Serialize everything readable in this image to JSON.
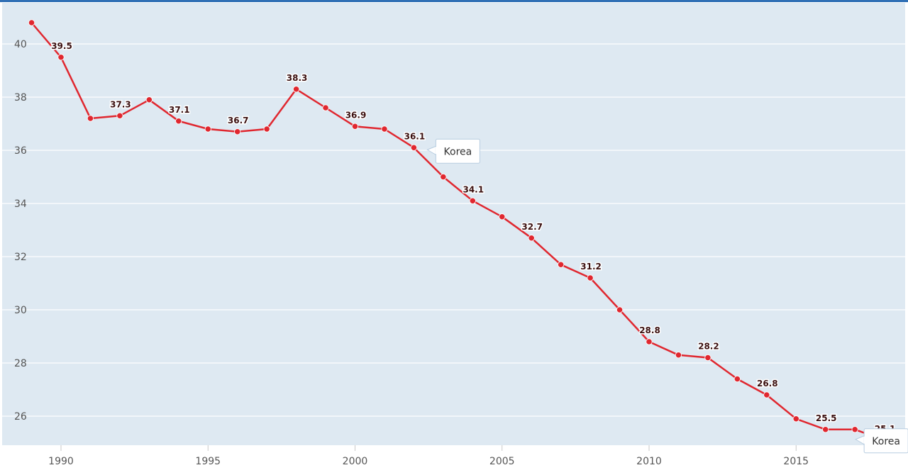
{
  "chart_data": {
    "type": "line",
    "title": "",
    "xlabel": "",
    "ylabel": "",
    "grid": true,
    "legend": "none",
    "colors": {
      "plot_background": "#dee9f2",
      "line": "#e0272f",
      "grid": "#ffffff",
      "frame_top": "#2f6fb5"
    },
    "xlim": [
      1988,
      2019
    ],
    "ylim": [
      24.9,
      41.25
    ],
    "x_ticks": [
      "1990",
      "1995",
      "2000",
      "2005",
      "2010",
      "2015"
    ],
    "y_ticks": [
      "26",
      "28",
      "30",
      "32",
      "34",
      "36",
      "38",
      "40"
    ],
    "series": [
      {
        "x": [
          1989,
          1990,
          1991,
          1992,
          1993,
          1994,
          1995,
          1996,
          1997,
          1998,
          1999,
          2000,
          2001,
          2002,
          2003,
          2004,
          2005,
          2006,
          2007,
          2008,
          2009,
          2010,
          2011,
          2012,
          2013,
          2014,
          2015,
          2016,
          2017,
          2018
        ],
        "values": [
          40.8,
          39.5,
          37.2,
          37.3,
          37.9,
          37.1,
          36.8,
          36.7,
          36.8,
          38.3,
          37.6,
          36.9,
          36.8,
          36.1,
          35.0,
          34.1,
          33.5,
          32.7,
          31.7,
          31.2,
          30.0,
          28.8,
          28.3,
          28.2,
          27.4,
          26.8,
          25.9,
          25.5,
          25.5,
          25.1
        ]
      }
    ],
    "data_labels": [
      {
        "x": 1990,
        "text": "39.5"
      },
      {
        "x": 1992,
        "text": "37.3"
      },
      {
        "x": 1994,
        "text": "37.1"
      },
      {
        "x": 1996,
        "text": "36.7"
      },
      {
        "x": 1998,
        "text": "38.3"
      },
      {
        "x": 2000,
        "text": "36.9"
      },
      {
        "x": 2002,
        "text": "36.1"
      },
      {
        "x": 2004,
        "text": "34.1"
      },
      {
        "x": 2006,
        "text": "32.7"
      },
      {
        "x": 2008,
        "text": "31.2"
      },
      {
        "x": 2010,
        "text": "28.8"
      },
      {
        "x": 2012,
        "text": "28.2"
      },
      {
        "x": 2014,
        "text": "26.8"
      },
      {
        "x": 2016,
        "text": "25.5"
      },
      {
        "x": 2018,
        "text": "25.1"
      }
    ],
    "callouts": [
      {
        "x": 2002,
        "text": "Korea"
      },
      {
        "x": 2017,
        "text": "Korea"
      }
    ]
  }
}
